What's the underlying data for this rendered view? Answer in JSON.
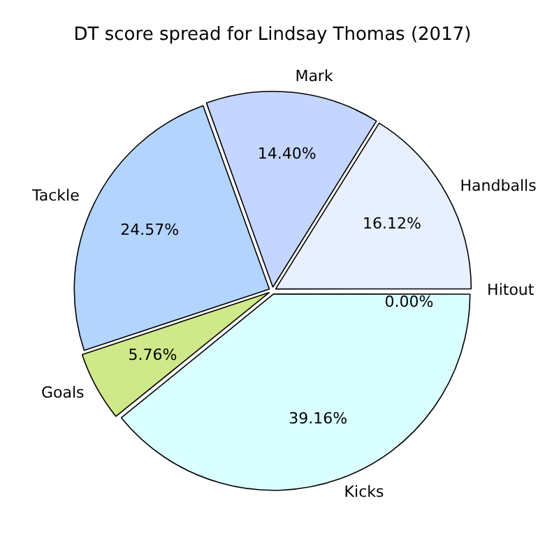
{
  "chart_data": {
    "type": "pie",
    "title": "DT score spread for Lindsay Thomas (2017)",
    "categories": [
      "Hitout",
      "Kicks",
      "Goals",
      "Tackle",
      "Mark",
      "Handballs"
    ],
    "values": [
      0.0,
      39.16,
      5.76,
      24.57,
      14.4,
      16.12
    ],
    "value_labels": [
      "0.00%",
      "39.16%",
      "5.76%",
      "24.57%",
      "14.40%",
      "16.12%"
    ],
    "colors": [
      "#e0e0ff",
      "#daffff",
      "#cfe88a",
      "#b3d4ff",
      "#c4d6ff",
      "#e8f0ff"
    ],
    "legend": false
  }
}
